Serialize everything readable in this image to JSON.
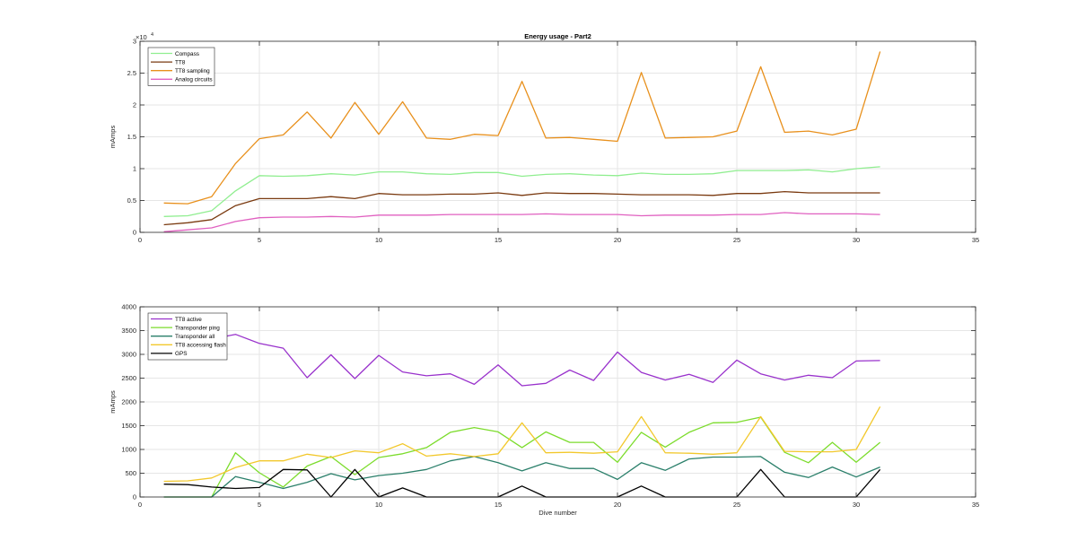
{
  "figure": {
    "chart_data": [
      {
        "type": "line",
        "title": "Energy usage - Part2",
        "xlabel": "",
        "ylabel": "mAmps",
        "exponent_label": "×10",
        "exponent_power": "4",
        "xlim": [
          0,
          35
        ],
        "ylim": [
          0,
          30000
        ],
        "xticks": [
          0,
          5,
          10,
          15,
          20,
          25,
          30,
          35
        ],
        "xtick_labels": [
          "0",
          "5",
          "10",
          "15",
          "20",
          "25",
          "30",
          "35"
        ],
        "yticks": [
          0,
          5000,
          10000,
          15000,
          20000,
          25000,
          30000
        ],
        "ytick_labels": [
          "0",
          "0.5",
          "1",
          "1.5",
          "2",
          "2.5",
          "3"
        ],
        "grid": true,
        "legend_position": "top-left",
        "x": [
          1,
          2,
          3,
          4,
          5,
          6,
          7,
          8,
          9,
          10,
          11,
          12,
          13,
          14,
          15,
          16,
          17,
          18,
          19,
          20,
          21,
          22,
          23,
          24,
          25,
          26,
          27,
          28,
          29,
          30,
          31
        ],
        "series": [
          {
            "name": "Compass",
            "color": "#90ee90",
            "values": [
              2500,
              2600,
              3400,
              6500,
              8900,
              8800,
              8900,
              9200,
              9000,
              9500,
              9500,
              9200,
              9100,
              9400,
              9400,
              8800,
              9100,
              9200,
              9000,
              8900,
              9300,
              9100,
              9100,
              9200,
              9700,
              9700,
              9700,
              9800,
              9500,
              10000,
              10300
            ]
          },
          {
            "name": "TT8",
            "color": "#7a3a10",
            "values": [
              1200,
              1500,
              2000,
              4200,
              5300,
              5300,
              5300,
              5600,
              5300,
              6100,
              5900,
              5900,
              6000,
              6000,
              6200,
              5800,
              6200,
              6100,
              6100,
              6000,
              5900,
              5900,
              5900,
              5800,
              6100,
              6100,
              6400,
              6200,
              6200,
              6200,
              6200
            ]
          },
          {
            "name": "TT8 sampling",
            "color": "#e8901c",
            "values": [
              4600,
              4500,
              5600,
              10800,
              14700,
              15300,
              18900,
              14800,
              20400,
              15400,
              20500,
              14800,
              14600,
              15400,
              15200,
              23700,
              14800,
              14900,
              14600,
              14300,
              25100,
              14800,
              14900,
              15000,
              15900,
              26000,
              15700,
              15900,
              15300,
              16200,
              28400
            ]
          },
          {
            "name": "Analog circuits",
            "color": "#e060c0",
            "values": [
              100,
              400,
              700,
              1700,
              2300,
              2400,
              2400,
              2500,
              2400,
              2700,
              2700,
              2700,
              2800,
              2800,
              2800,
              2800,
              2900,
              2800,
              2800,
              2800,
              2600,
              2700,
              2700,
              2700,
              2800,
              2800,
              3100,
              2900,
              2900,
              2900,
              2800
            ]
          }
        ]
      },
      {
        "type": "line",
        "title": "",
        "xlabel": "Dive number",
        "ylabel": "mAmps",
        "xlim": [
          0,
          35
        ],
        "ylim": [
          0,
          4000
        ],
        "xticks": [
          0,
          5,
          10,
          15,
          20,
          25,
          30,
          35
        ],
        "xtick_labels": [
          "0",
          "5",
          "10",
          "15",
          "20",
          "25",
          "30",
          "35"
        ],
        "yticks": [
          0,
          500,
          1000,
          1500,
          2000,
          2500,
          3000,
          3500,
          4000
        ],
        "ytick_labels": [
          "0",
          "500",
          "1000",
          "1500",
          "2000",
          "2500",
          "3000",
          "3500",
          "4000"
        ],
        "grid": true,
        "legend_position": "top-left",
        "x": [
          1,
          2,
          3,
          4,
          5,
          6,
          7,
          8,
          9,
          10,
          11,
          12,
          13,
          14,
          15,
          16,
          17,
          18,
          19,
          20,
          21,
          22,
          23,
          24,
          25,
          26,
          27,
          28,
          29,
          30,
          31
        ],
        "series": [
          {
            "name": "TT8 active",
            "color": "#9932cc",
            "values": [
              3300,
              3310,
              3320,
              3420,
              3230,
              3130,
              2510,
              2990,
              2490,
              2980,
              2630,
              2550,
              2590,
              2370,
              2780,
              2340,
              2390,
              2670,
              2450,
              3050,
              2620,
              2460,
              2580,
              2410,
              2880,
              2590,
              2460,
              2560,
              2510,
              2860,
              2870
            ]
          },
          {
            "name": "Transponder ping",
            "color": "#7cdc2c",
            "values": [
              0,
              0,
              0,
              930,
              510,
              210,
              650,
              850,
              470,
              830,
              910,
              1040,
              1360,
              1460,
              1370,
              1040,
              1370,
              1150,
              1150,
              730,
              1360,
              1050,
              1360,
              1560,
              1570,
              1680,
              940,
              720,
              1150,
              730,
              1150
            ]
          },
          {
            "name": "Transponder all",
            "color": "#2a7f6a",
            "values": [
              0,
              0,
              0,
              430,
              310,
              180,
              310,
              490,
              360,
              450,
              500,
              580,
              760,
              850,
              720,
              550,
              720,
              600,
              600,
              370,
              720,
              560,
              800,
              840,
              840,
              850,
              520,
              410,
              630,
              420,
              630
            ]
          },
          {
            "name": "TT8 accessing flash",
            "color": "#f2c82c",
            "values": [
              330,
              340,
              400,
              620,
              760,
              760,
              900,
              830,
              970,
              930,
              1120,
              860,
              910,
              850,
              910,
              1560,
              930,
              940,
              920,
              950,
              1690,
              930,
              920,
              900,
              930,
              1690,
              960,
              950,
              950,
              1000,
              1900
            ]
          },
          {
            "name": "GPS",
            "color": "#000000",
            "values": [
              270,
              260,
              210,
              180,
              200,
              580,
              570,
              0,
              580,
              0,
              190,
              0,
              0,
              0,
              0,
              230,
              0,
              0,
              0,
              0,
              230,
              0,
              0,
              0,
              0,
              580,
              0,
              0,
              0,
              0,
              580
            ]
          }
        ]
      }
    ]
  }
}
